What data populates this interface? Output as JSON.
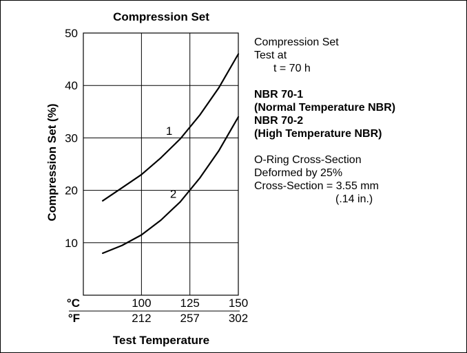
{
  "chart_data": {
    "type": "line",
    "title": "Compression Set",
    "xlabel": "Test Temperature",
    "ylabel": "Compression Set (%)",
    "xlim": [
      70,
      150
    ],
    "ylim": [
      0,
      50
    ],
    "grid": true,
    "y_ticks": [
      10,
      20,
      30,
      40,
      50
    ],
    "x_ticks_c": [
      100,
      125,
      150
    ],
    "x_ticks_f": [
      212,
      257,
      302
    ],
    "x_unit_c": "°C",
    "x_unit_f": "°F",
    "series": [
      {
        "name": "1",
        "x": [
          80,
          90,
          100,
          110,
          120,
          130,
          140,
          150
        ],
        "y": [
          18,
          20.5,
          23,
          26.2,
          29.8,
          34.3,
          39.6,
          46
        ]
      },
      {
        "name": "2",
        "x": [
          80,
          90,
          100,
          110,
          120,
          130,
          140,
          150
        ],
        "y": [
          8,
          9.5,
          11.5,
          14.3,
          17.8,
          22.3,
          27.6,
          34
        ]
      }
    ]
  },
  "legend": {
    "line1": "Compression Set",
    "line2": "Test at",
    "line3": "t = 70 h",
    "line4": "NBR 70-1",
    "line5": "(Normal Temperature NBR)",
    "line6": "NBR 70-2",
    "line7": "(High Temperature NBR)",
    "line8": "O-Ring Cross-Section",
    "line9": "Deformed by 25%",
    "line10": "Cross-Section = 3.55 mm",
    "line11": "(.14 in.)"
  }
}
